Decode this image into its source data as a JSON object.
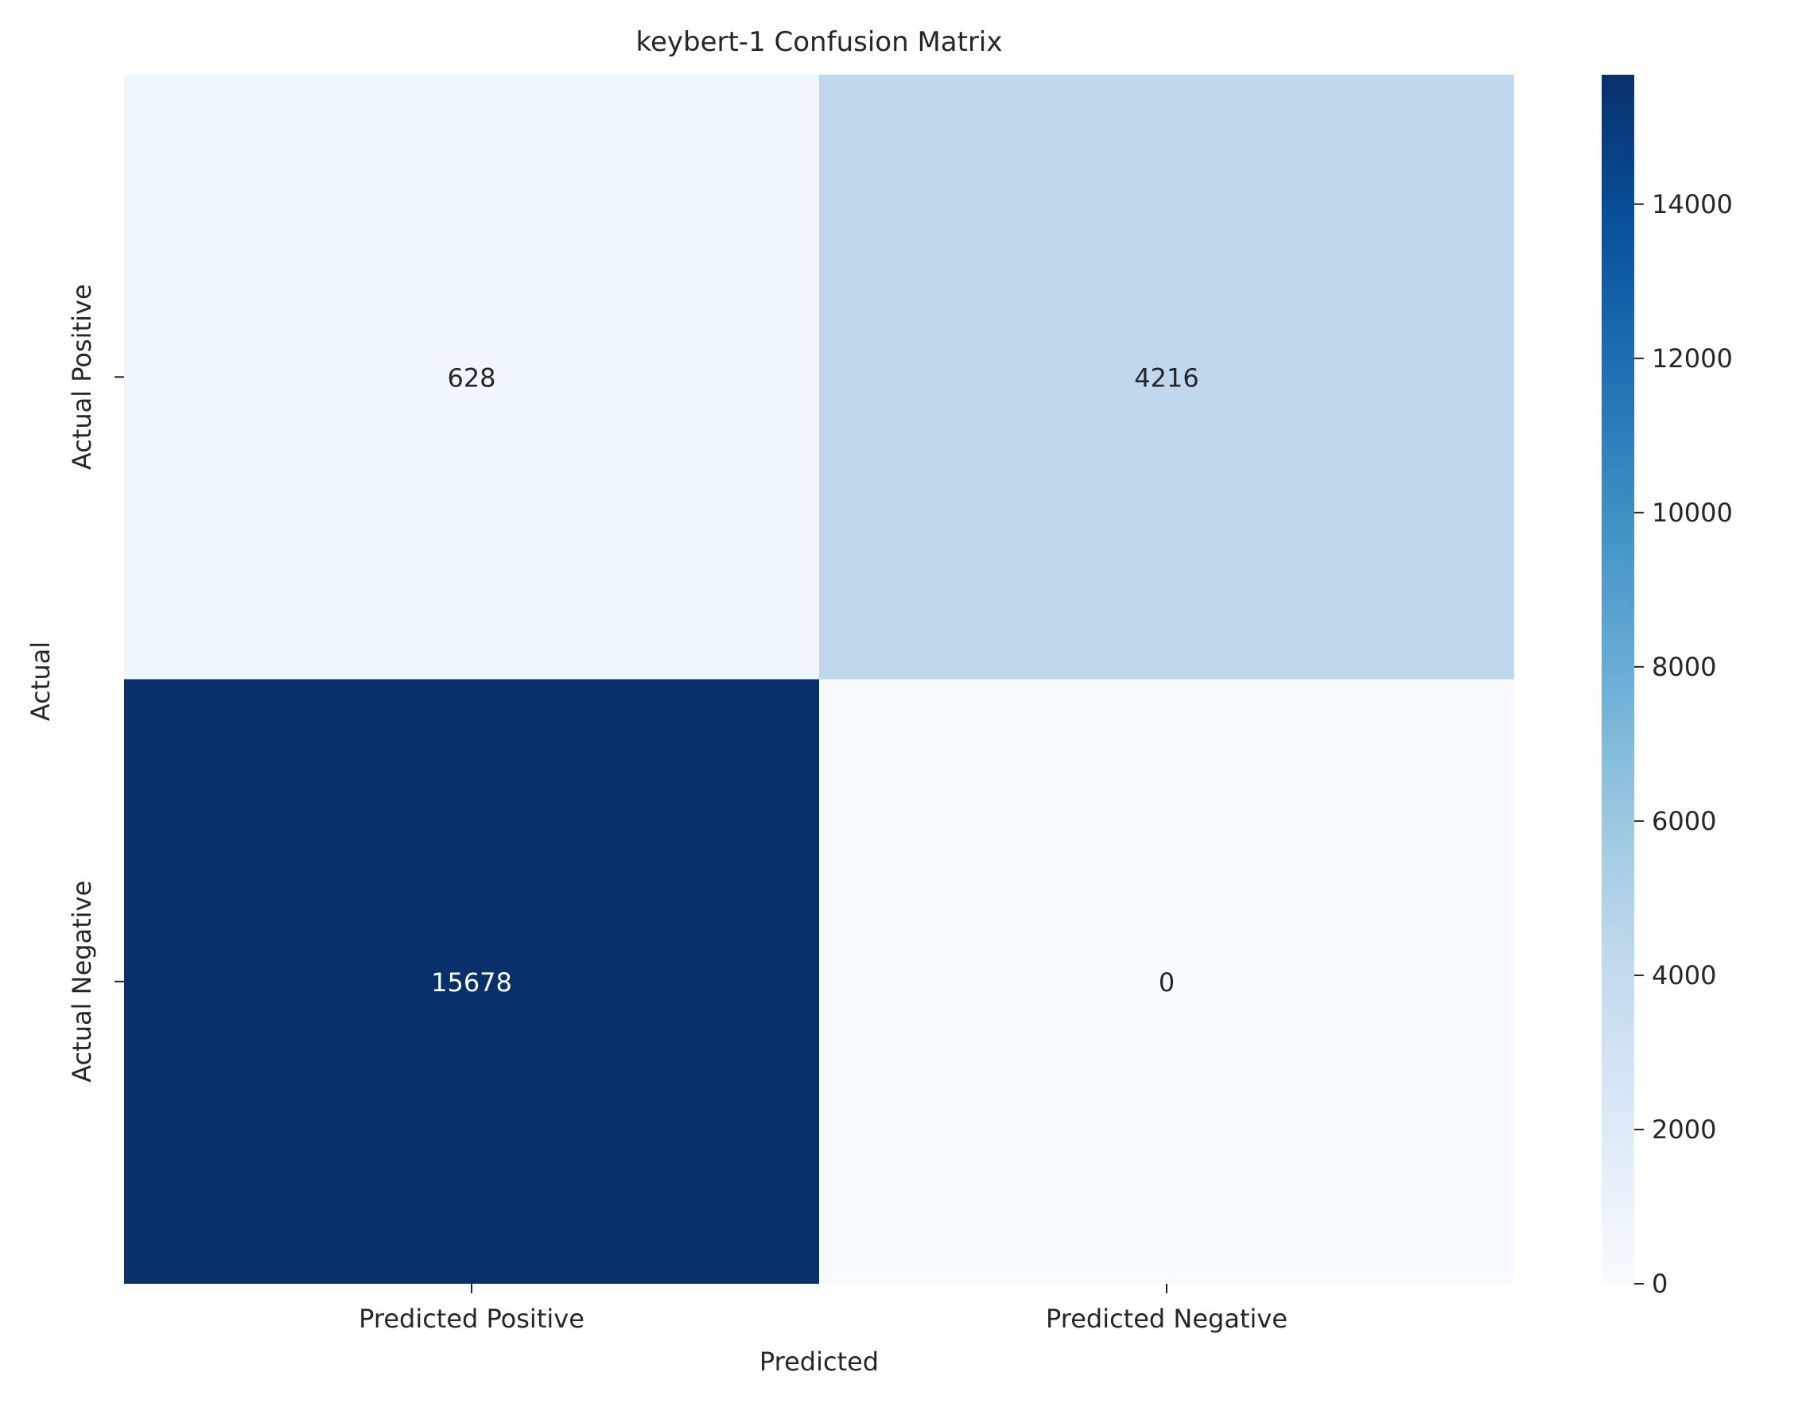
{
  "chart_data": {
    "type": "heatmap",
    "title": "keybert-1 Confusion Matrix",
    "xlabel": "Predicted",
    "ylabel": "Actual",
    "x_categories": [
      "Predicted Positive",
      "Predicted Negative"
    ],
    "y_categories": [
      "Actual Positive",
      "Actual Negative"
    ],
    "values": [
      [
        628,
        4216
      ],
      [
        15678,
        0
      ]
    ],
    "colorbar": {
      "min": 0,
      "max": 15678,
      "ticks": [
        0,
        2000,
        4000,
        6000,
        8000,
        10000,
        12000,
        14000
      ],
      "colormap": "Blues"
    }
  }
}
